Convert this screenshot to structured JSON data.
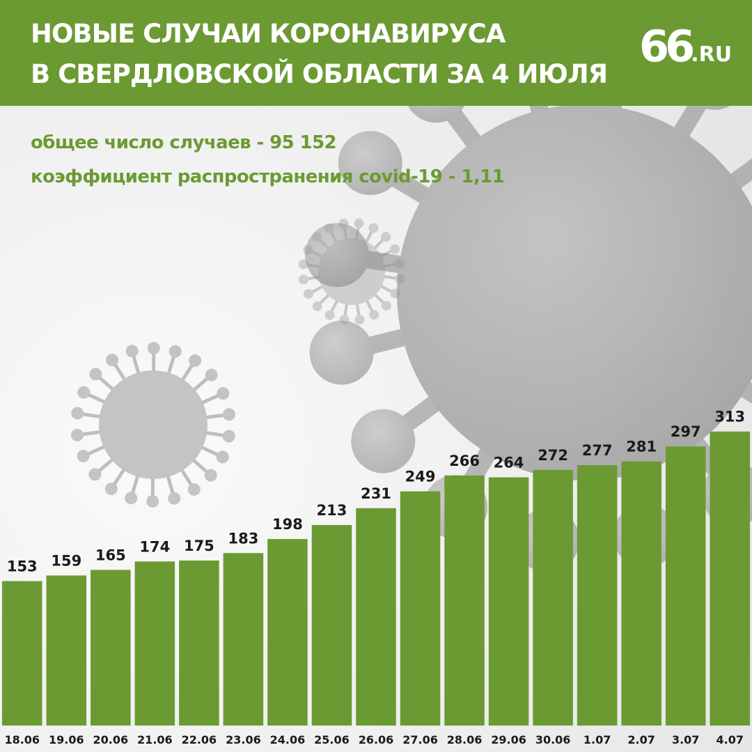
{
  "header": {
    "title_line1": "НОВЫЕ СЛУЧАИ КОРОНАВИРУСА",
    "title_line2": "В СВЕРДЛОВСКОЙ ОБЛАСТИ ЗА 4 ИЮЛЯ",
    "logo_number": "66",
    "logo_domain": ".RU"
  },
  "summary": {
    "total_cases": "общее число случаев - 95 152",
    "spread_rate": "коэффициент распространения covid-19 - 1,11"
  },
  "colors": {
    "accent": "#6b9a32",
    "bar": "#6b9a32",
    "label": "#1a1a1a",
    "background": "#f2f2f2"
  },
  "background_illustration": "coronavirus-particles",
  "chart_data": {
    "type": "bar",
    "categories": [
      "18.06",
      "19.06",
      "20.06",
      "21.06",
      "22.06",
      "23.06",
      "24.06",
      "25.06",
      "26.06",
      "27.06",
      "28.06",
      "29.06",
      "30.06",
      "1.07",
      "2.07",
      "3.07",
      "4.07"
    ],
    "values": [
      153,
      159,
      165,
      174,
      175,
      183,
      198,
      213,
      231,
      249,
      266,
      264,
      272,
      277,
      281,
      297,
      313
    ],
    "title": "",
    "xlabel": "",
    "ylabel": "",
    "grid": false,
    "legend": "none",
    "data_labels": true
  }
}
